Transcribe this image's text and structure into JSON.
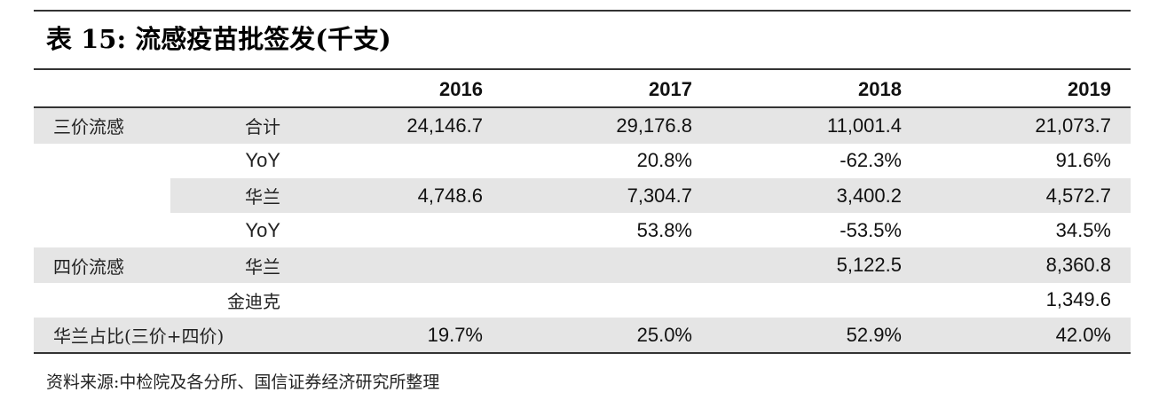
{
  "title": "表 15: 流感疫苗批签发(千支)",
  "header": {
    "years": [
      "2016",
      "2017",
      "2018",
      "2019"
    ]
  },
  "rows": [
    {
      "group": "三价流感",
      "sub": "合计",
      "values": [
        "24,146.7",
        "29,176.8",
        "11,001.4",
        "21,073.7"
      ]
    },
    {
      "group": "",
      "sub": "YoY",
      "values": [
        "",
        "20.8%",
        "-62.3%",
        "91.6%"
      ]
    },
    {
      "group": "",
      "sub": "华兰",
      "values": [
        "4,748.6",
        "7,304.7",
        "3,400.2",
        "4,572.7"
      ]
    },
    {
      "group": "",
      "sub": "YoY",
      "values": [
        "",
        "53.8%",
        "-53.5%",
        "34.5%"
      ]
    },
    {
      "group": "四价流感",
      "sub": "华兰",
      "values": [
        "",
        "",
        "5,122.5",
        "8,360.8"
      ]
    },
    {
      "group": "",
      "sub": "金迪克",
      "values": [
        "",
        "",
        "",
        "1,349.6"
      ]
    },
    {
      "group": "华兰占比(三价+四价)",
      "sub": "",
      "values": [
        "19.7%",
        "25.0%",
        "52.9%",
        "42.0%"
      ]
    }
  ],
  "source": "资料来源:中检院及各分所、国信证券经济研究所整理",
  "colors": {
    "shade": "#e5e5e5",
    "rule": "#333333"
  }
}
